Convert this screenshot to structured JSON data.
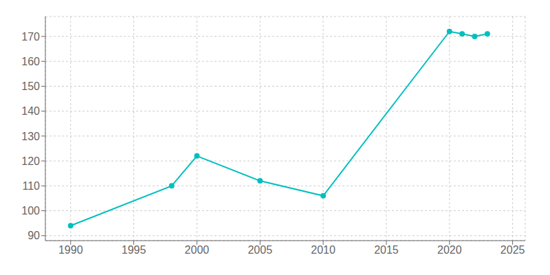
{
  "chart_data": {
    "type": "line",
    "x": [
      1990,
      1998,
      2000,
      2005,
      2010,
      2020,
      2021,
      2022,
      2023
    ],
    "values": [
      94,
      110,
      122,
      112,
      106,
      172,
      171,
      170,
      171
    ],
    "color": "#00BFBF",
    "marker": "o",
    "xlim": [
      1988,
      2026
    ],
    "ylim": [
      88,
      178
    ],
    "xticks": [
      1990,
      1995,
      2000,
      2005,
      2010,
      2015,
      2020,
      2025
    ],
    "yticks": [
      90,
      100,
      110,
      120,
      130,
      140,
      150,
      160,
      170
    ],
    "grid": true
  }
}
